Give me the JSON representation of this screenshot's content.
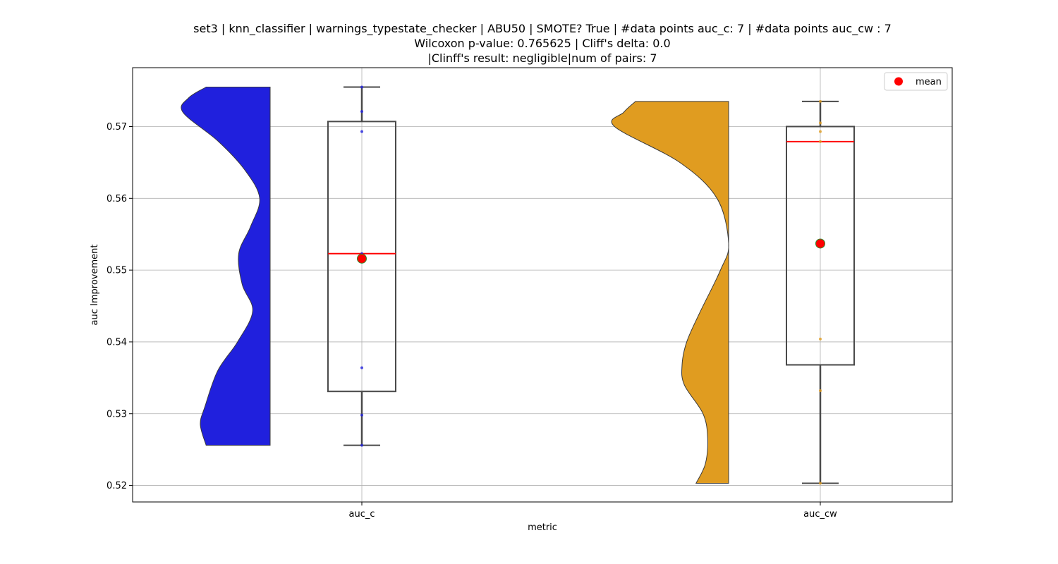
{
  "chart_data": {
    "type": "violin-box",
    "title_lines": [
      "set3 | knn_classifier | warnings_typestate_checker | ABU50 | SMOTE? True | #data points auc_c: 7 | #data points auc_cw : 7",
      "Wilcoxon p-value: 0.765625 | Cliff's delta: 0.0",
      "|Clinff's result: negligible|num of pairs: 7"
    ],
    "xlabel": "metric",
    "ylabel": "auc Improvement",
    "ylim": [
      0.5177,
      0.5782
    ],
    "yticks": [
      0.52,
      0.53,
      0.54,
      0.55,
      0.56,
      0.57
    ],
    "grid": true,
    "legend": {
      "label": "mean",
      "placement": "top-right"
    },
    "colors": {
      "auc_c": "#2020dd",
      "auc_cw": "#e09c20",
      "median": "#ff0000",
      "mean": "#ff0000",
      "mean_edge": "#2e8b2e",
      "box_edge": "#4a4a4a"
    },
    "series": [
      {
        "name": "auc_c",
        "color": "#2020dd",
        "points": [
          0.5256,
          0.5298,
          0.5364,
          0.5523,
          0.5693,
          0.5721,
          0.5755
        ],
        "box": {
          "whisker_low": 0.5256,
          "q1": 0.5331,
          "median": 0.5523,
          "q3": 0.5707,
          "whisker_high": 0.5755
        },
        "mean": 0.5516,
        "violin_profile": [
          [
            0.5256,
            0.55
          ],
          [
            0.5285,
            0.6
          ],
          [
            0.531,
            0.56
          ],
          [
            0.536,
            0.45
          ],
          [
            0.54,
            0.28
          ],
          [
            0.5443,
            0.15
          ],
          [
            0.548,
            0.24
          ],
          [
            0.5523,
            0.27
          ],
          [
            0.556,
            0.17
          ],
          [
            0.56,
            0.09
          ],
          [
            0.564,
            0.22
          ],
          [
            0.568,
            0.45
          ],
          [
            0.572,
            0.75
          ],
          [
            0.574,
            0.7
          ],
          [
            0.5755,
            0.55
          ]
        ]
      },
      {
        "name": "auc_cw",
        "color": "#e09c20",
        "points": [
          0.5203,
          0.5332,
          0.5404,
          0.5679,
          0.5693,
          0.5705,
          0.5735
        ],
        "box": {
          "whisker_low": 0.5203,
          "q1": 0.5368,
          "median": 0.5679,
          "q3": 0.57,
          "whisker_high": 0.5735
        },
        "mean": 0.5537,
        "violin_profile": [
          [
            0.5203,
            0.28
          ],
          [
            0.523,
            0.2
          ],
          [
            0.5266,
            0.18
          ],
          [
            0.53,
            0.22
          ],
          [
            0.534,
            0.38
          ],
          [
            0.5368,
            0.4
          ],
          [
            0.54,
            0.36
          ],
          [
            0.544,
            0.25
          ],
          [
            0.55,
            0.07
          ],
          [
            0.5537,
            0.0
          ],
          [
            0.56,
            0.1
          ],
          [
            0.565,
            0.42
          ],
          [
            0.57,
            0.98
          ],
          [
            0.572,
            0.9
          ],
          [
            0.5735,
            0.8
          ]
        ]
      }
    ]
  }
}
